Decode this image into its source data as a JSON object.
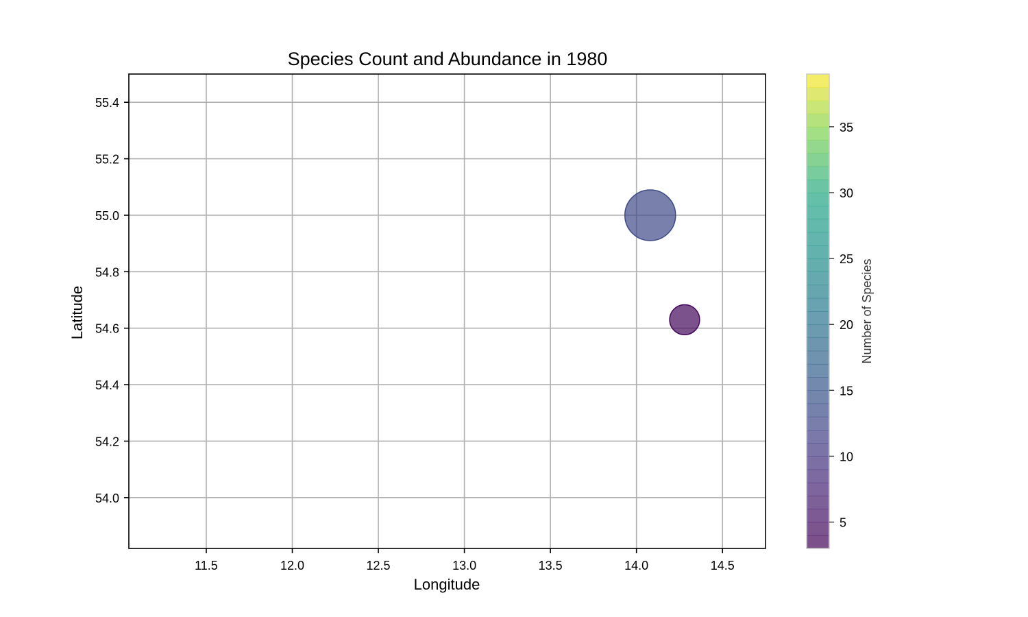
{
  "chart_data": {
    "type": "scatter",
    "title": "Species Count and Abundance in 1980",
    "xlabel": "Longitude",
    "ylabel": "Latitude",
    "xlim": [
      11.05,
      14.75
    ],
    "ylim": [
      53.82,
      55.5
    ],
    "xticks": [
      "11.5",
      "12.0",
      "12.5",
      "13.0",
      "13.5",
      "14.0",
      "14.5"
    ],
    "yticks": [
      "54.0",
      "54.2",
      "54.4",
      "54.6",
      "54.8",
      "55.0",
      "55.2",
      "55.4"
    ],
    "grid": true,
    "points": [
      {
        "x": 14.08,
        "y": 55.0,
        "species": 13,
        "abundance": 100
      },
      {
        "x": 14.28,
        "y": 54.63,
        "species": 4,
        "abundance": 35
      }
    ],
    "colorbar": {
      "label": "Number of Species",
      "range": [
        3,
        39
      ],
      "ticks": [
        "5",
        "10",
        "15",
        "20",
        "25",
        "30",
        "35"
      ],
      "colormap": "viridis",
      "alpha": 0.7
    }
  }
}
